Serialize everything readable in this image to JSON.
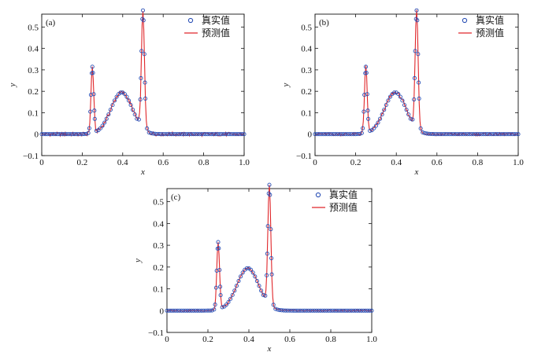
{
  "colors": {
    "actual": "#2b50b6",
    "predicted": "#e0262a",
    "axis": "#111111"
  },
  "chart_data": [
    {
      "type": "line",
      "panel_label": "(a)",
      "xlabel": "x",
      "ylabel": "y",
      "xlim": [
        0,
        1
      ],
      "ylim": [
        -0.1,
        0.56
      ],
      "xticks": [
        0,
        0.2,
        0.4,
        0.6,
        0.8,
        1.0
      ],
      "xtick_labels": [
        "0",
        "0.2",
        "0.4",
        "0.6",
        "0.8",
        "1.0"
      ],
      "yticks": [
        -0.1,
        0,
        0.1,
        0.2,
        0.3,
        0.4,
        0.5
      ],
      "ytick_labels": [
        "−0.1",
        "0",
        "0.1",
        "0.2",
        "0.3",
        "0.4",
        "0.5"
      ],
      "legend": {
        "position": "top-right",
        "entries": [
          "真实值",
          "预测值"
        ]
      },
      "noise": 0.009,
      "series": [
        {
          "name": "真实值",
          "style": "markers",
          "color": "#2b50b6"
        },
        {
          "name": "预测值",
          "style": "line",
          "color": "#e0262a"
        }
      ]
    },
    {
      "type": "line",
      "panel_label": "(b)",
      "xlabel": "x",
      "ylabel": "y",
      "xlim": [
        0,
        1
      ],
      "ylim": [
        -0.1,
        0.56
      ],
      "xticks": [
        0,
        0.2,
        0.4,
        0.6,
        0.8,
        1.0
      ],
      "xtick_labels": [
        "0",
        "0.2",
        "0.4",
        "0.6",
        "0.8",
        "1.0"
      ],
      "yticks": [
        -0.1,
        0,
        0.1,
        0.2,
        0.3,
        0.4,
        0.5
      ],
      "ytick_labels": [
        "−0.1",
        "0",
        "0.1",
        "0.2",
        "0.3",
        "0.4",
        "0.5"
      ],
      "legend": {
        "position": "top-right",
        "entries": [
          "真实值",
          "预测值"
        ]
      },
      "noise": 0.007,
      "series": [
        {
          "name": "真实值",
          "style": "markers",
          "color": "#2b50b6"
        },
        {
          "name": "预测值",
          "style": "line",
          "color": "#e0262a"
        }
      ]
    },
    {
      "type": "line",
      "panel_label": "(c)",
      "xlabel": "x",
      "ylabel": "y",
      "xlim": [
        0,
        1
      ],
      "ylim": [
        -0.1,
        0.56
      ],
      "xticks": [
        0,
        0.2,
        0.4,
        0.6,
        0.8,
        1.0
      ],
      "xtick_labels": [
        "0",
        "0.2",
        "0.4",
        "0.6",
        "0.8",
        "1.0"
      ],
      "yticks": [
        -0.1,
        0,
        0.1,
        0.2,
        0.3,
        0.4,
        0.5
      ],
      "ytick_labels": [
        "−0.1",
        "0",
        "0.1",
        "0.2",
        "0.3",
        "0.4",
        "0.5"
      ],
      "legend": {
        "position": "top-right",
        "entries": [
          "真实值",
          "预测值"
        ]
      },
      "noise": 0.003,
      "series": [
        {
          "name": "真实值",
          "style": "markers",
          "color": "#2b50b6"
        },
        {
          "name": "预测值",
          "style": "line",
          "color": "#e0262a"
        }
      ]
    }
  ]
}
